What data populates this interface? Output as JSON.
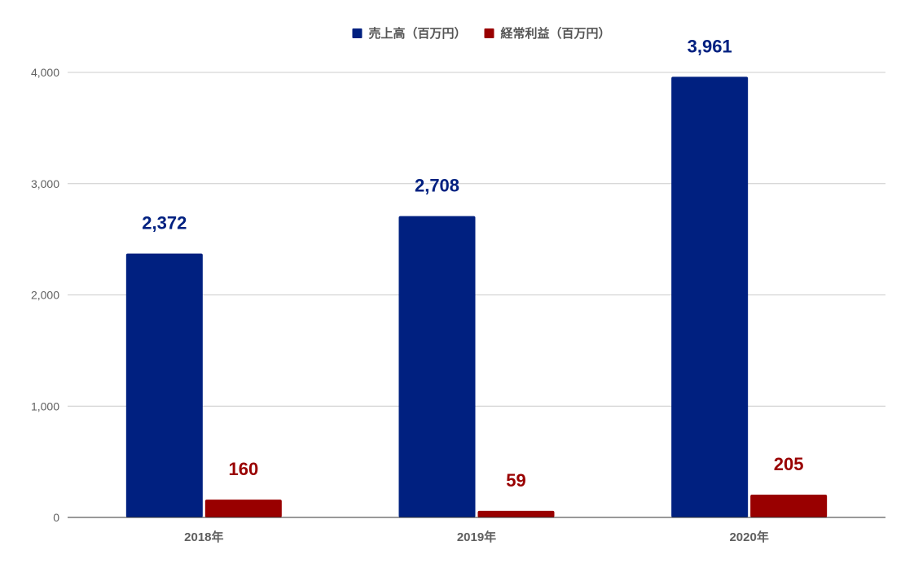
{
  "chart_data": {
    "type": "bar",
    "categories": [
      "2018年",
      "2019年",
      "2020年"
    ],
    "series": [
      {
        "name": "売上高（百万円）",
        "values": [
          2372,
          2708,
          3961
        ],
        "labels": [
          "2,372",
          "2,708",
          "3,961"
        ],
        "color": "#002080"
      },
      {
        "name": "経常利益（百万円）",
        "values": [
          160,
          59,
          205
        ],
        "labels": [
          "160",
          "59",
          "205"
        ],
        "color": "#990000"
      }
    ],
    "ylim": [
      0,
      4000
    ],
    "yticks": [
      0,
      1000,
      2000,
      3000,
      4000
    ],
    "ytick_labels": [
      "0",
      "1,000",
      "2,000",
      "3,000",
      "4,000"
    ],
    "grid": true,
    "legend_position": "top-center",
    "title": "",
    "xlabel": "",
    "ylabel": ""
  }
}
